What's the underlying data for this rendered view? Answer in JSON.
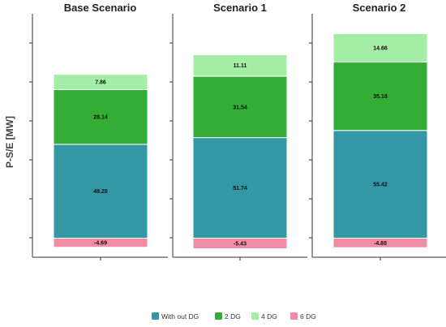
{
  "chart_data": {
    "type": "bar",
    "stacked": true,
    "layout": "three panels side by side, shared y axis",
    "ylabel": "P-S/E [MW]",
    "categories": [
      "Base Scenario",
      "Scenario 1",
      "Scenario 2"
    ],
    "series": [
      {
        "name": "With out DG",
        "color": "#3397a5",
        "values": [
          48.28,
          51.74,
          55.42
        ]
      },
      {
        "name": "2 DG",
        "color": "#33ad33",
        "values": [
          28.14,
          31.54,
          35.18
        ]
      },
      {
        "name": "4 DG",
        "color": "#a3eda5",
        "values": [
          7.86,
          11.11,
          14.66
        ]
      },
      {
        "name": "6 DG",
        "color": "#f28ba6",
        "values": [
          -4.69,
          -5.43,
          -4.88
        ]
      }
    ],
    "ylim": [
      -10,
      110
    ],
    "grid": false,
    "legend": "bottom-center"
  }
}
